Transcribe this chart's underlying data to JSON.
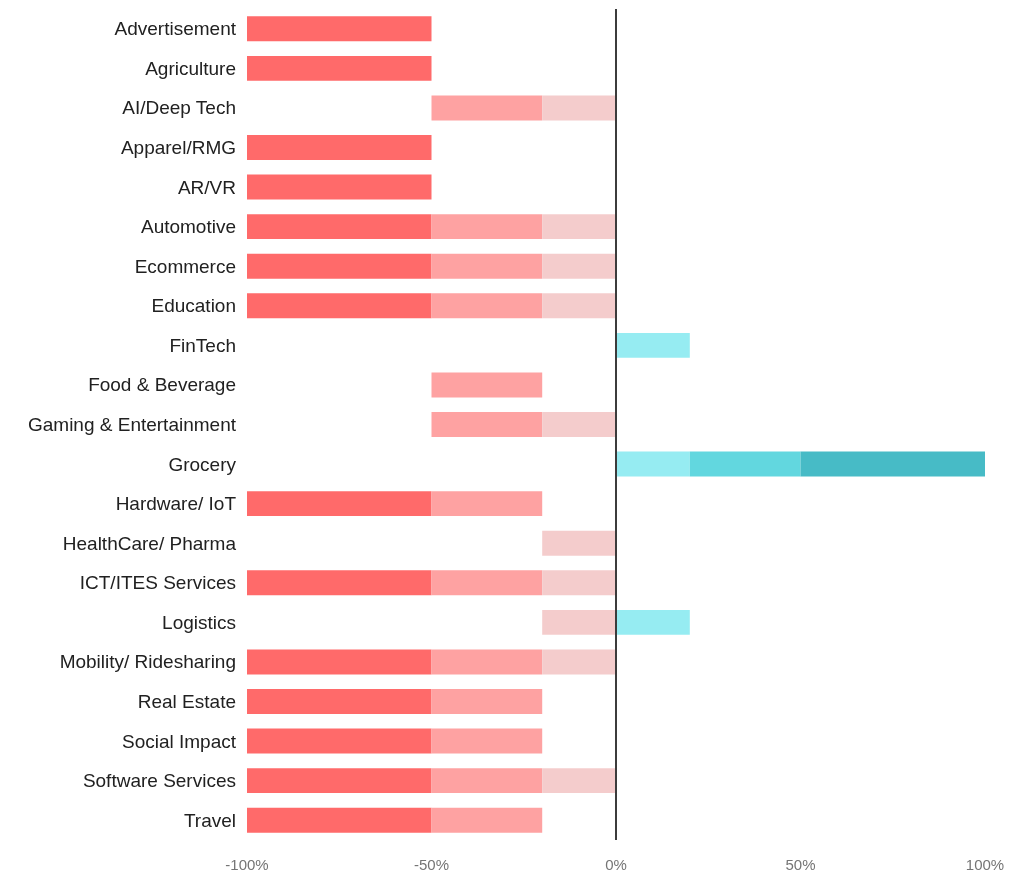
{
  "chart_data": {
    "type": "bar",
    "orientation": "horizontal",
    "categories": [
      "Advertisement",
      "Agriculture",
      "AI/Deep Tech",
      "Apparel/RMG",
      "AR/VR",
      "Automotive",
      "Ecommerce",
      "Education",
      "FinTech",
      "Food & Beverage",
      "Gaming & Entertainment",
      "Grocery",
      "Hardware/ IoT",
      "HealthCare/ Pharma",
      "ICT/ITES Services",
      "Logistics",
      "Mobility/ Ridesharing",
      "Real Estate",
      "Social Impact",
      "Software Services",
      "Travel"
    ],
    "series": [
      {
        "color": "#ff6a6a",
        "base": [
          -50,
          -50,
          null,
          -50,
          -50,
          -50,
          -50,
          -50,
          null,
          null,
          null,
          null,
          -50,
          null,
          -50,
          null,
          -50,
          -50,
          -50,
          -50,
          -50
        ],
        "values": [
          -50,
          -50,
          null,
          -50,
          -50,
          -50,
          -50,
          -50,
          null,
          null,
          null,
          null,
          -50,
          null,
          -50,
          null,
          -50,
          -50,
          -50,
          -50,
          -50
        ]
      },
      {
        "color": "#fea2a2",
        "base": [
          null,
          null,
          -20,
          null,
          null,
          -20,
          -20,
          -20,
          null,
          -20,
          -20,
          null,
          -20,
          null,
          -20,
          null,
          -20,
          -20,
          -20,
          -20,
          -20
        ],
        "values": [
          null,
          null,
          -30,
          null,
          null,
          -30,
          -30,
          -30,
          null,
          -30,
          -30,
          null,
          -30,
          null,
          -30,
          null,
          -30,
          -30,
          -30,
          -30,
          -30
        ]
      },
      {
        "color": "#f4cccc",
        "base": [
          null,
          null,
          0,
          null,
          null,
          0,
          0,
          0,
          null,
          null,
          0,
          null,
          null,
          0,
          0,
          0,
          0,
          null,
          null,
          0,
          null
        ],
        "values": [
          null,
          null,
          -20,
          null,
          null,
          -20,
          -20,
          -20,
          null,
          null,
          -20,
          null,
          null,
          -20,
          -20,
          -20,
          -20,
          null,
          null,
          -20,
          null
        ]
      },
      {
        "color": "#96ecf2",
        "base": [
          null,
          null,
          null,
          null,
          null,
          null,
          null,
          null,
          0,
          null,
          null,
          0,
          null,
          null,
          null,
          0,
          null,
          null,
          null,
          null,
          null
        ],
        "values": [
          null,
          null,
          null,
          null,
          null,
          null,
          null,
          null,
          20,
          null,
          null,
          20,
          null,
          null,
          null,
          20,
          null,
          null,
          null,
          null,
          null
        ]
      },
      {
        "color": "#62d7df",
        "base": [
          null,
          null,
          null,
          null,
          null,
          null,
          null,
          null,
          null,
          null,
          null,
          20,
          null,
          null,
          null,
          null,
          null,
          null,
          null,
          null,
          null
        ],
        "values": [
          null,
          null,
          null,
          null,
          null,
          null,
          null,
          null,
          null,
          null,
          null,
          30,
          null,
          null,
          null,
          null,
          null,
          null,
          null,
          null,
          null
        ]
      },
      {
        "color": "#47bbc6",
        "base": [
          null,
          null,
          null,
          null,
          null,
          null,
          null,
          null,
          null,
          null,
          null,
          50,
          null,
          null,
          null,
          null,
          null,
          null,
          null,
          null,
          null
        ],
        "values": [
          null,
          null,
          null,
          null,
          null,
          null,
          null,
          null,
          null,
          null,
          null,
          50,
          null,
          null,
          null,
          null,
          null,
          null,
          null,
          null,
          null
        ]
      }
    ],
    "xlim": [
      -100,
      100
    ],
    "xticks": [
      {
        "value": -100,
        "label": "-100%"
      },
      {
        "value": -50,
        "label": "-50%"
      },
      {
        "value": 0,
        "label": "0%"
      },
      {
        "value": 50,
        "label": "50%"
      },
      {
        "value": 100,
        "label": "100%"
      }
    ],
    "ref_lines": [
      {
        "axis": "x",
        "value": 0,
        "color": "#3c3c3c",
        "line_style": "solid"
      }
    ]
  }
}
